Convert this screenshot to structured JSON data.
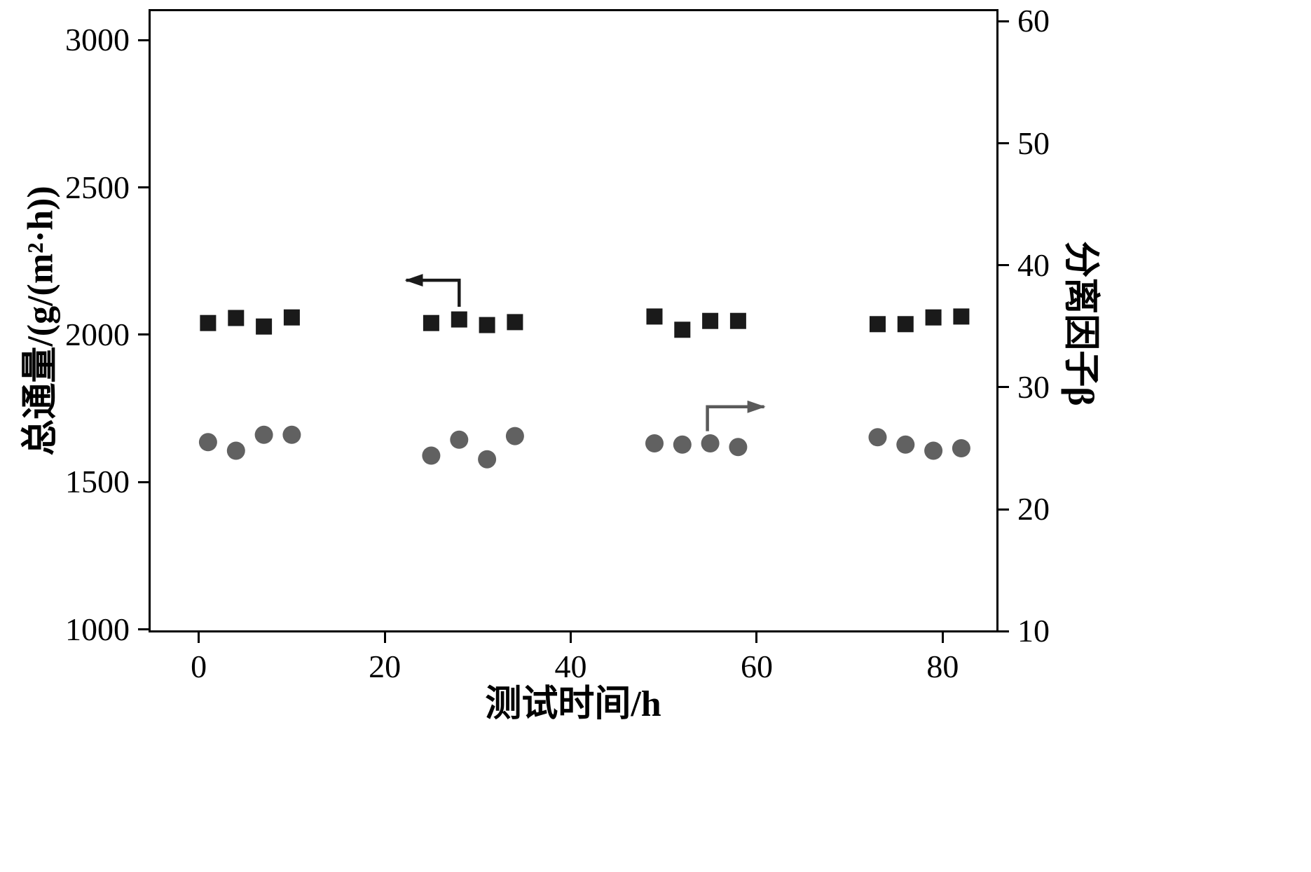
{
  "figure": {
    "background": "#ffffff"
  },
  "chart_data": {
    "type": "scatter",
    "title": "",
    "xlabel": "测试时间/h",
    "ylabel_left": "总通量/(g/(m²·h))",
    "ylabel_right": "分离因子β",
    "xlim": [
      -5.4,
      86
    ],
    "ylim_left": [
      990,
      3105
    ],
    "ylim_right": [
      9.9,
      61
    ],
    "x_ticks": [
      0,
      20,
      40,
      60,
      80
    ],
    "left_ticks": [
      1000,
      1500,
      2000,
      2500,
      3000
    ],
    "right_ticks": [
      10,
      20,
      30,
      40,
      50,
      60
    ],
    "grid": false,
    "legend": "none",
    "series": [
      {
        "name": "总通量",
        "marker": "square",
        "color": "#1a1a1a",
        "axis": "left",
        "x": [
          1,
          4,
          7,
          10,
          25,
          28,
          31,
          34,
          49,
          52,
          55,
          58,
          73,
          76,
          79,
          82
        ],
        "y": [
          2040,
          2057,
          2028,
          2059,
          2040,
          2052,
          2033,
          2043,
          2062,
          2017,
          2047,
          2047,
          2036,
          2036,
          2059,
          2062
        ]
      },
      {
        "name": "分离因子β",
        "marker": "circle",
        "color": "#616161",
        "axis": "right",
        "x": [
          1,
          4,
          7,
          10,
          25,
          28,
          31,
          34,
          49,
          52,
          55,
          58,
          73,
          76,
          79,
          82
        ],
        "y": [
          25.5,
          24.8,
          26.1,
          26.1,
          24.4,
          25.7,
          24.1,
          26.0,
          25.4,
          25.3,
          25.4,
          25.1,
          25.9,
          25.3,
          24.8,
          25.0
        ]
      }
    ],
    "annotations": [
      {
        "name": "flux-axis-arrow",
        "meaning": "squares read on left axis",
        "axis": "left",
        "color": "#1a1a1a",
        "x": [
          28,
          28,
          22.3
        ],
        "y": [
          2095,
          2185,
          2185
        ]
      },
      {
        "name": "beta-axis-arrow",
        "meaning": "circles read on right axis",
        "axis": "right",
        "color": "#5a5a5a",
        "x": [
          54.7,
          54.7,
          60.8
        ],
        "y": [
          26.4,
          28.4,
          28.4
        ]
      }
    ]
  }
}
